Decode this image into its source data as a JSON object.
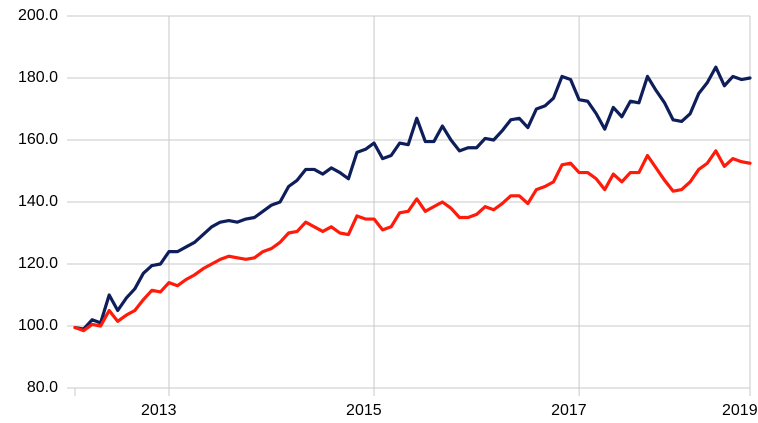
{
  "chart_data": {
    "type": "line",
    "categories": [
      null,
      null,
      null,
      null,
      null,
      null,
      null,
      null,
      null,
      null,
      null,
      "2013",
      null,
      null,
      null,
      null,
      null,
      null,
      null,
      null,
      null,
      null,
      null,
      null,
      null,
      null,
      null,
      null,
      null,
      null,
      null,
      null,
      null,
      null,
      null,
      "2015",
      null,
      null,
      null,
      null,
      null,
      null,
      null,
      null,
      null,
      null,
      null,
      null,
      null,
      null,
      null,
      null,
      null,
      null,
      null,
      null,
      null,
      null,
      null,
      "2017",
      null,
      null,
      null,
      null,
      null,
      null,
      null,
      null,
      null,
      null,
      null,
      null,
      null,
      null,
      null,
      null,
      null,
      null,
      null,
      "2019"
    ],
    "series": [
      {
        "color": "#0e1e5b",
        "values": [
          99.5,
          99,
          102,
          101,
          110,
          105,
          109,
          112,
          117,
          119.5,
          120,
          124,
          124,
          125.5,
          127,
          129.5,
          132,
          133.5,
          134,
          133.5,
          134.5,
          135,
          137,
          139,
          140,
          145,
          147,
          150.5,
          150.5,
          149,
          151,
          149.5,
          147.5,
          156,
          157,
          159,
          154,
          155,
          159,
          158.5,
          167,
          159.5,
          159.5,
          164.5,
          160,
          156.5,
          157.5,
          157.5,
          160.5,
          160,
          163,
          166.5,
          167,
          164,
          170,
          171,
          173.5,
          180.5,
          179.5,
          173,
          172.5,
          168.5,
          163.5,
          170.5,
          167.5,
          172.5,
          172,
          180.5,
          176,
          172,
          166.5,
          166,
          168.5,
          175,
          178.5,
          183.5,
          177.5,
          180.5,
          179.5,
          180
        ]
      },
      {
        "color": "#ff1a0a",
        "values": [
          99.5,
          98.5,
          100.5,
          100,
          105,
          101.5,
          103.5,
          105,
          108.5,
          111.5,
          111,
          114,
          113,
          115,
          116.5,
          118.5,
          120,
          121.5,
          122.5,
          122,
          121.5,
          122,
          124,
          125,
          127,
          130,
          130.5,
          133.5,
          132,
          130.5,
          132,
          130,
          129.5,
          135.5,
          134.5,
          134.5,
          131,
          132,
          136.5,
          137,
          141,
          137,
          138.5,
          140,
          138,
          135,
          135,
          136,
          138.5,
          137.5,
          139.5,
          142,
          142,
          139.5,
          144,
          145,
          146.5,
          152,
          152.5,
          149.5,
          149.5,
          147.5,
          144,
          149,
          146.5,
          149.5,
          149.5,
          155,
          151,
          147,
          143.5,
          144,
          146.5,
          150.5,
          152.5,
          156.5,
          151.5,
          154,
          153,
          152.5
        ]
      }
    ],
    "ylim": [
      80,
      200
    ],
    "yticks": [
      {
        "value": 80,
        "label": "80.0"
      },
      {
        "value": 100,
        "label": "100.0"
      },
      {
        "value": 120,
        "label": "120.0"
      },
      {
        "value": 140,
        "label": "140.0"
      },
      {
        "value": 160,
        "label": "160.0"
      },
      {
        "value": 180,
        "label": "180.0"
      },
      {
        "value": 200,
        "label": "200.0"
      }
    ],
    "grid": true
  }
}
